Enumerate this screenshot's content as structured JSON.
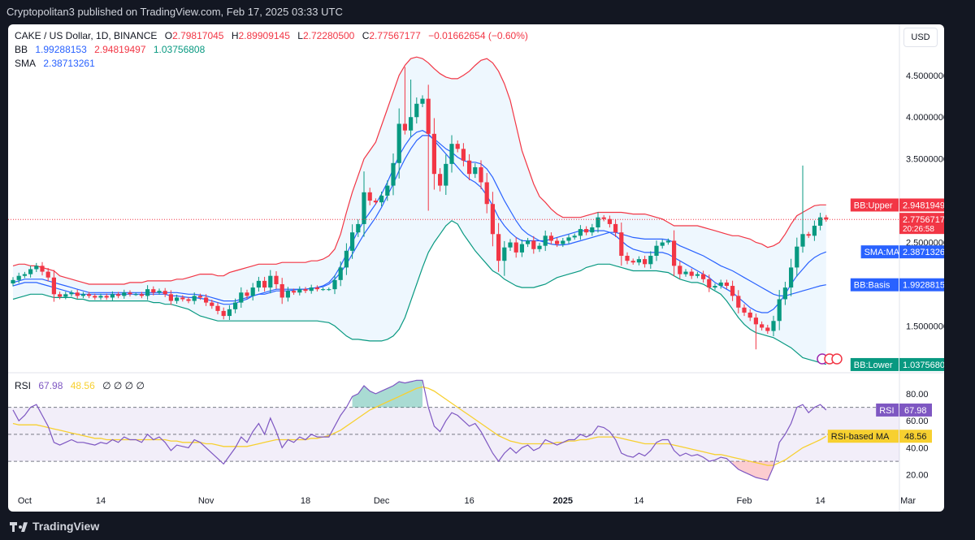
{
  "header": {
    "publisher_text": "Cryptopolitan3 published on TradingView.com, Feb 17, 2025 03:33 UTC"
  },
  "footer": {
    "brand": "TradingView"
  },
  "legend": {
    "symbol": "CAKE / US Dollar, 1D, BINANCE",
    "open_label": "O",
    "open": "2.79817045",
    "high_label": "H",
    "high": "2.89909145",
    "low_label": "L",
    "low": "2.72280500",
    "close_label": "C",
    "close": "2.77567177",
    "change": "−0.01662654 (−0.60%)",
    "bb_label": "BB",
    "bb_basis": "1.99288153",
    "bb_upper": "2.94819497",
    "bb_lower": "1.03756808",
    "sma_label": "SMA",
    "sma": "2.38713261",
    "rsi_label": "RSI",
    "rsi": "67.98",
    "rsi_ma": "48.56",
    "rsi_extra": "∅ ∅ ∅ ∅"
  },
  "price_axis": {
    "currency": "USD",
    "ticks": [
      "4.50000000",
      "4.00000000",
      "3.50000000",
      "2.50000000",
      "1.50000000"
    ],
    "tick_values": [
      4.5,
      4.0,
      3.5,
      2.5,
      1.5
    ]
  },
  "price_tags": [
    {
      "label": "BB:Upper",
      "value": "2.94819497",
      "y": 2.948,
      "color": "#f23645"
    },
    {
      "label": "",
      "value": "2.77567177",
      "sub": "20:26:58",
      "y": 2.776,
      "color": "#f23645"
    },
    {
      "label": "SMA:MA",
      "value": "2.38713261",
      "y": 2.387,
      "color": "#2962ff"
    },
    {
      "label": "BB:Basis",
      "value": "1.99288153",
      "y": 1.993,
      "color": "#2962ff"
    },
    {
      "label": "BB:Lower",
      "value": "1.03756808",
      "y": 1.038,
      "color": "#089981"
    }
  ],
  "rsi_axis": {
    "ticks": [
      "80.00",
      "60.00",
      "40.00",
      "20.00"
    ],
    "tick_values": [
      80,
      60,
      40,
      20
    ]
  },
  "rsi_tags": [
    {
      "label": "RSI",
      "value": "67.98",
      "y": 67.98,
      "color": "#7e57c2"
    },
    {
      "label": "RSI-based MA",
      "value": "48.56",
      "y": 48.56,
      "color": "#f7d030"
    }
  ],
  "time_axis": [
    {
      "label": "Oct",
      "day": 2
    },
    {
      "label": "14",
      "day": 15
    },
    {
      "label": "Nov",
      "day": 33
    },
    {
      "label": "18",
      "day": 50
    },
    {
      "label": "Dec",
      "day": 63
    },
    {
      "label": "16",
      "day": 78
    },
    {
      "label": "2025",
      "day": 94
    },
    {
      "label": "14",
      "day": 107
    },
    {
      "label": "Feb",
      "day": 125
    },
    {
      "label": "14",
      "day": 138
    },
    {
      "label": "Mar",
      "day": 153
    }
  ],
  "chart_data": {
    "type": "candlestick",
    "title": "CAKE / US Dollar, 1D, BINANCE",
    "y_range": [
      0.95,
      4.78
    ],
    "last_price": 2.77567177,
    "closes": [
      2.05,
      2.1,
      2.12,
      2.18,
      2.22,
      2.15,
      2.08,
      1.88,
      1.85,
      1.88,
      1.9,
      1.86,
      1.88,
      1.86,
      1.84,
      1.86,
      1.84,
      1.88,
      1.86,
      1.9,
      1.88,
      1.88,
      1.86,
      1.94,
      1.9,
      1.92,
      1.88,
      1.8,
      1.84,
      1.82,
      1.8,
      1.86,
      1.84,
      1.78,
      1.74,
      1.68,
      1.62,
      1.7,
      1.78,
      1.9,
      1.86,
      1.96,
      2.04,
      1.96,
      2.1,
      2.0,
      1.84,
      1.92,
      1.9,
      1.94,
      1.92,
      1.96,
      1.94,
      1.94,
      1.94,
      2.05,
      2.2,
      2.4,
      2.62,
      2.72,
      3.1,
      3.0,
      2.98,
      3.06,
      3.18,
      3.45,
      3.92,
      3.84,
      4.0,
      4.16,
      4.22,
      3.8,
      3.32,
      3.18,
      3.44,
      3.68,
      3.62,
      3.48,
      3.32,
      3.4,
      3.22,
      2.96,
      2.6,
      2.28,
      2.44,
      2.5,
      2.38,
      2.48,
      2.52,
      2.42,
      2.46,
      2.58,
      2.52,
      2.48,
      2.52,
      2.56,
      2.58,
      2.66,
      2.62,
      2.68,
      2.8,
      2.78,
      2.72,
      2.62,
      2.34,
      2.28,
      2.26,
      2.3,
      2.24,
      2.34,
      2.46,
      2.5,
      2.52,
      2.22,
      2.12,
      2.15,
      2.1,
      2.12,
      2.06,
      1.96,
      1.98,
      2.02,
      1.98,
      1.86,
      1.72,
      1.66,
      1.6,
      1.52,
      1.48,
      1.44,
      1.56,
      1.82,
      1.96,
      2.2,
      2.45,
      2.6,
      2.58,
      2.7,
      2.8,
      2.776
    ],
    "opens_note": "each candle opens at the previous close (unless listed)",
    "highs_extra": {
      "60": 3.35,
      "67": 4.6,
      "68": 4.45,
      "135": 3.42,
      "140": 2.9
    },
    "lows_extra": {
      "71": 2.88,
      "84": 2.1,
      "127": 1.22
    },
    "bollinger_upper": [
      2.22,
      2.24,
      2.24,
      2.22,
      2.22,
      2.2,
      2.18,
      2.16,
      2.1,
      2.08,
      2.06,
      2.04,
      2.02,
      2.0,
      2.0,
      2.0,
      2.0,
      2.0,
      2.0,
      2.0,
      2.02,
      2.02,
      2.02,
      2.04,
      2.04,
      2.04,
      2.04,
      2.04,
      2.06,
      2.06,
      2.08,
      2.1,
      2.12,
      2.12,
      2.12,
      2.1,
      2.1,
      2.14,
      2.16,
      2.18,
      2.2,
      2.22,
      2.24,
      2.24,
      2.24,
      2.24,
      2.26,
      2.26,
      2.26,
      2.26,
      2.26,
      2.28,
      2.28,
      2.3,
      2.34,
      2.42,
      2.6,
      2.86,
      3.1,
      3.3,
      3.5,
      3.6,
      3.7,
      3.9,
      4.1,
      4.3,
      4.5,
      4.62,
      4.7,
      4.72,
      4.7,
      4.65,
      4.58,
      4.52,
      4.48,
      4.46,
      4.46,
      4.5,
      4.55,
      4.62,
      4.68,
      4.7,
      4.65,
      4.55,
      4.4,
      4.2,
      3.9,
      3.6,
      3.4,
      3.2,
      3.05,
      2.98,
      2.9,
      2.84,
      2.8,
      2.8,
      2.8,
      2.8,
      2.82,
      2.84,
      2.86,
      2.86,
      2.86,
      2.86,
      2.86,
      2.85,
      2.84,
      2.84,
      2.84,
      2.82,
      2.8,
      2.78,
      2.74,
      2.7,
      2.7,
      2.7,
      2.7,
      2.7,
      2.68,
      2.66,
      2.64,
      2.62,
      2.6,
      2.58,
      2.58,
      2.56,
      2.54,
      2.5,
      2.48,
      2.44,
      2.46,
      2.5,
      2.6,
      2.72,
      2.82,
      2.86,
      2.9,
      2.94,
      2.95,
      2.95
    ],
    "bollinger_basis": [
      2.02,
      2.04,
      2.06,
      2.06,
      2.06,
      2.06,
      2.04,
      2.02,
      2.0,
      1.98,
      1.96,
      1.94,
      1.92,
      1.9,
      1.9,
      1.9,
      1.9,
      1.9,
      1.9,
      1.9,
      1.9,
      1.9,
      1.9,
      1.9,
      1.9,
      1.9,
      1.9,
      1.9,
      1.9,
      1.89,
      1.88,
      1.88,
      1.87,
      1.86,
      1.84,
      1.82,
      1.8,
      1.8,
      1.8,
      1.82,
      1.84,
      1.86,
      1.88,
      1.88,
      1.9,
      1.92,
      1.92,
      1.92,
      1.93,
      1.94,
      1.94,
      1.95,
      1.96,
      1.97,
      2.0,
      2.06,
      2.14,
      2.24,
      2.36,
      2.48,
      2.6,
      2.7,
      2.8,
      2.92,
      3.06,
      3.2,
      3.36,
      3.5,
      3.62,
      3.72,
      3.78,
      3.78,
      3.74,
      3.68,
      3.62,
      3.58,
      3.52,
      3.48,
      3.46,
      3.46,
      3.44,
      3.38,
      3.28,
      3.14,
      3.0,
      2.88,
      2.76,
      2.66,
      2.6,
      2.56,
      2.52,
      2.5,
      2.48,
      2.47,
      2.47,
      2.48,
      2.5,
      2.52,
      2.54,
      2.56,
      2.58,
      2.6,
      2.62,
      2.62,
      2.6,
      2.58,
      2.56,
      2.55,
      2.54,
      2.54,
      2.54,
      2.54,
      2.53,
      2.5,
      2.46,
      2.43,
      2.4,
      2.37,
      2.34,
      2.3,
      2.26,
      2.22,
      2.19,
      2.16,
      2.12,
      2.08,
      2.04,
      2.0,
      1.96,
      1.92,
      1.88,
      1.86,
      1.86,
      1.88,
      1.9,
      1.92,
      1.94,
      1.96,
      1.98,
      1.993
    ],
    "bollinger_lower": [
      1.82,
      1.84,
      1.86,
      1.88,
      1.88,
      1.88,
      1.86,
      1.84,
      1.84,
      1.84,
      1.84,
      1.82,
      1.82,
      1.8,
      1.8,
      1.8,
      1.8,
      1.8,
      1.8,
      1.8,
      1.8,
      1.8,
      1.8,
      1.8,
      1.78,
      1.78,
      1.76,
      1.76,
      1.74,
      1.72,
      1.7,
      1.66,
      1.62,
      1.6,
      1.58,
      1.56,
      1.56,
      1.56,
      1.56,
      1.56,
      1.56,
      1.56,
      1.56,
      1.56,
      1.56,
      1.56,
      1.56,
      1.56,
      1.56,
      1.56,
      1.56,
      1.56,
      1.56,
      1.55,
      1.54,
      1.5,
      1.44,
      1.38,
      1.34,
      1.34,
      1.33,
      1.32,
      1.32,
      1.32,
      1.34,
      1.38,
      1.46,
      1.6,
      1.8,
      2.0,
      2.2,
      2.38,
      2.5,
      2.6,
      2.7,
      2.76,
      2.72,
      2.6,
      2.5,
      2.4,
      2.32,
      2.24,
      2.16,
      2.12,
      2.06,
      2.02,
      1.98,
      1.96,
      1.96,
      1.96,
      1.98,
      2.0,
      2.04,
      2.08,
      2.1,
      2.12,
      2.14,
      2.16,
      2.2,
      2.22,
      2.24,
      2.24,
      2.24,
      2.22,
      2.2,
      2.18,
      2.16,
      2.16,
      2.16,
      2.16,
      2.16,
      2.15,
      2.14,
      2.1,
      2.06,
      2.04,
      2.02,
      2.02,
      2.0,
      1.96,
      1.92,
      1.88,
      1.8,
      1.7,
      1.6,
      1.52,
      1.46,
      1.42,
      1.4,
      1.38,
      1.36,
      1.32,
      1.28,
      1.24,
      1.18,
      1.12,
      1.1,
      1.08,
      1.06,
      1.04
    ],
    "sma": [
      1.98,
      2.0,
      2.02,
      2.02,
      2.02,
      2.0,
      1.98,
      1.96,
      1.94,
      1.92,
      1.9,
      1.88,
      1.88,
      1.88,
      1.88,
      1.88,
      1.88,
      1.88,
      1.88,
      1.88,
      1.88,
      1.88,
      1.88,
      1.88,
      1.88,
      1.88,
      1.88,
      1.86,
      1.86,
      1.85,
      1.84,
      1.84,
      1.83,
      1.82,
      1.8,
      1.78,
      1.76,
      1.76,
      1.77,
      1.8,
      1.82,
      1.86,
      1.88,
      1.9,
      1.92,
      1.94,
      1.94,
      1.94,
      1.94,
      1.94,
      1.94,
      1.95,
      1.96,
      1.98,
      2.02,
      2.1,
      2.22,
      2.36,
      2.5,
      2.64,
      2.76,
      2.86,
      2.96,
      3.08,
      3.22,
      3.38,
      3.54,
      3.66,
      3.76,
      3.82,
      3.84,
      3.8,
      3.72,
      3.64,
      3.56,
      3.48,
      3.4,
      3.32,
      3.26,
      3.22,
      3.16,
      3.06,
      2.94,
      2.8,
      2.7,
      2.62,
      2.56,
      2.52,
      2.52,
      2.52,
      2.52,
      2.52,
      2.54,
      2.56,
      2.58,
      2.6,
      2.62,
      2.64,
      2.64,
      2.64,
      2.64,
      2.64,
      2.62,
      2.58,
      2.52,
      2.46,
      2.42,
      2.4,
      2.38,
      2.38,
      2.38,
      2.38,
      2.36,
      2.32,
      2.28,
      2.24,
      2.2,
      2.16,
      2.12,
      2.08,
      2.02,
      1.98,
      1.94,
      1.9,
      1.84,
      1.78,
      1.72,
      1.68,
      1.66,
      1.66,
      1.7,
      1.78,
      1.88,
      2.0,
      2.1,
      2.18,
      2.26,
      2.32,
      2.36,
      2.387
    ],
    "rsi": [
      68,
      60,
      64,
      70,
      72,
      64,
      56,
      44,
      42,
      44,
      46,
      44,
      44,
      43,
      42,
      44,
      43,
      46,
      44,
      48,
      46,
      46,
      44,
      50,
      46,
      48,
      44,
      38,
      42,
      41,
      40,
      46,
      44,
      40,
      36,
      32,
      28,
      34,
      40,
      48,
      44,
      52,
      58,
      50,
      62,
      52,
      40,
      46,
      44,
      48,
      46,
      50,
      48,
      48,
      48,
      56,
      64,
      70,
      78,
      80,
      86,
      82,
      80,
      82,
      84,
      86,
      89,
      88,
      89,
      90,
      90,
      70,
      56,
      52,
      60,
      66,
      64,
      60,
      56,
      58,
      52,
      44,
      36,
      30,
      36,
      40,
      36,
      40,
      42,
      38,
      40,
      46,
      44,
      42,
      44,
      46,
      46,
      50,
      48,
      50,
      56,
      55,
      52,
      46,
      36,
      34,
      33,
      36,
      34,
      38,
      44,
      46,
      46,
      38,
      34,
      36,
      34,
      35,
      33,
      30,
      31,
      33,
      32,
      28,
      24,
      22,
      20,
      18,
      17,
      16,
      26,
      44,
      50,
      58,
      70,
      72,
      66,
      70,
      72,
      67.98
    ],
    "rsi_ma": [
      58,
      57,
      57,
      57,
      57,
      56,
      55,
      54,
      53,
      52,
      51,
      50,
      49,
      48,
      47,
      47,
      46,
      46,
      46,
      46,
      46,
      46,
      46,
      46,
      46,
      46,
      46,
      45,
      45,
      44,
      44,
      44,
      44,
      43,
      43,
      42,
      41,
      41,
      41,
      41,
      41,
      42,
      43,
      44,
      45,
      46,
      46,
      46,
      46,
      46,
      46,
      47,
      47,
      48,
      49,
      51,
      53,
      56,
      59,
      62,
      65,
      68,
      70,
      72,
      74,
      76,
      78,
      80,
      82,
      84,
      85,
      84,
      82,
      79,
      76,
      73,
      70,
      67,
      64,
      61,
      58,
      55,
      52,
      49,
      47,
      45,
      44,
      43,
      43,
      43,
      43,
      43,
      43,
      44,
      44,
      45,
      45,
      46,
      46,
      47,
      48,
      48,
      48,
      48,
      47,
      46,
      45,
      44,
      43,
      43,
      43,
      43,
      43,
      42,
      41,
      40,
      39,
      38,
      37,
      36,
      35,
      35,
      34,
      33,
      32,
      31,
      30,
      29,
      28,
      27,
      27,
      29,
      31,
      34,
      37,
      40,
      42,
      44,
      46,
      48.56
    ]
  }
}
